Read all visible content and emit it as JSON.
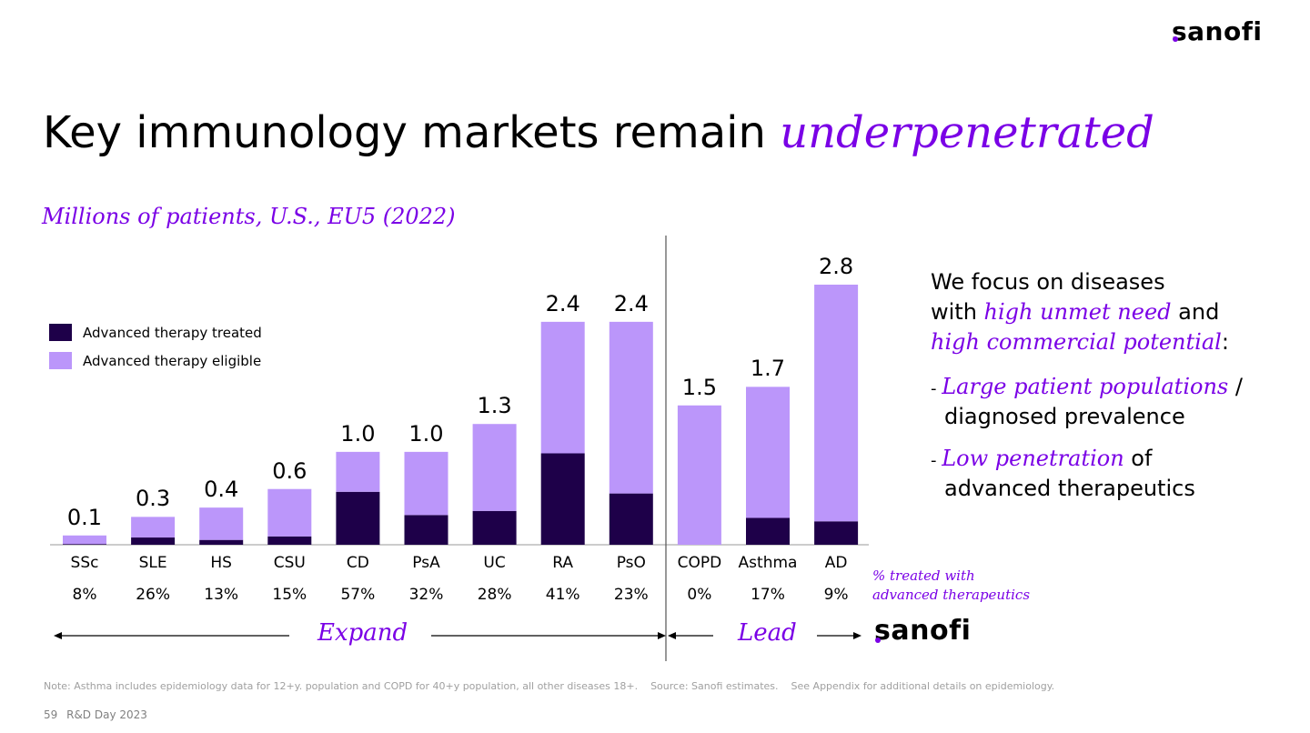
{
  "header": {
    "logo_text": "sanofi"
  },
  "title": {
    "main": "Key immunology markets remain ",
    "emphasis": "underpenetrated"
  },
  "chart_data": {
    "type": "bar",
    "stacked": true,
    "title": "Millions of patients, U.S., EU5 (2022)",
    "categories": [
      "SSc",
      "SLE",
      "HS",
      "CSU",
      "CD",
      "PsA",
      "UC",
      "RA",
      "PsO",
      "COPD",
      "Asthma",
      "AD"
    ],
    "totals": [
      "0.1",
      "0.3",
      "0.4",
      "0.6",
      "1.0",
      "1.0",
      "1.3",
      "2.4",
      "2.4",
      "1.5",
      "1.7",
      "2.8"
    ],
    "series": [
      {
        "name": "Advanced therapy treated",
        "color": "#1e0049",
        "values": [
          0.008,
          0.078,
          0.052,
          0.09,
          0.57,
          0.32,
          0.364,
          0.984,
          0.552,
          0,
          0.289,
          0.252
        ]
      },
      {
        "name": "Advanced therapy eligible",
        "color": "#bb96fa",
        "values": [
          0.092,
          0.222,
          0.348,
          0.51,
          0.43,
          0.68,
          0.936,
          1.416,
          1.848,
          1.5,
          1.411,
          2.548
        ]
      }
    ],
    "pct_treated": [
      "8%",
      "26%",
      "13%",
      "15%",
      "57%",
      "32%",
      "28%",
      "41%",
      "23%",
      "0%",
      "17%",
      "9%"
    ],
    "pct_label": [
      "% treated with",
      "advanced therapeutics"
    ],
    "ylim": [
      0,
      2.8
    ],
    "grid": false,
    "legend": "top-left"
  },
  "flow": {
    "expand": "Expand",
    "lead": "Lead",
    "logo_text": "sanofi"
  },
  "rhs": {
    "line1": "We focus on diseases",
    "line2_pre": "with ",
    "line2_em": "high unmet need",
    "line2_post": " and",
    "line3_em": "high commercial potential",
    "line3_post": ":",
    "b1_dash": "- ",
    "b1_em": "Large patient populations",
    "b1_post": " /",
    "b1_line2": "diagnosed prevalence",
    "b2_dash": "- ",
    "b2_em": "Low penetration",
    "b2_post": " of",
    "b2_line2": "advanced therapeutics"
  },
  "footnote": "Note: Asthma includes epidemiology data for 12+y. population and COPD for 40+y population, all other diseases 18+.    Source: Sanofi estimates.    See Appendix for additional details on epidemiology.",
  "footer": {
    "page": "59",
    "event": "R&D Day 2023"
  }
}
